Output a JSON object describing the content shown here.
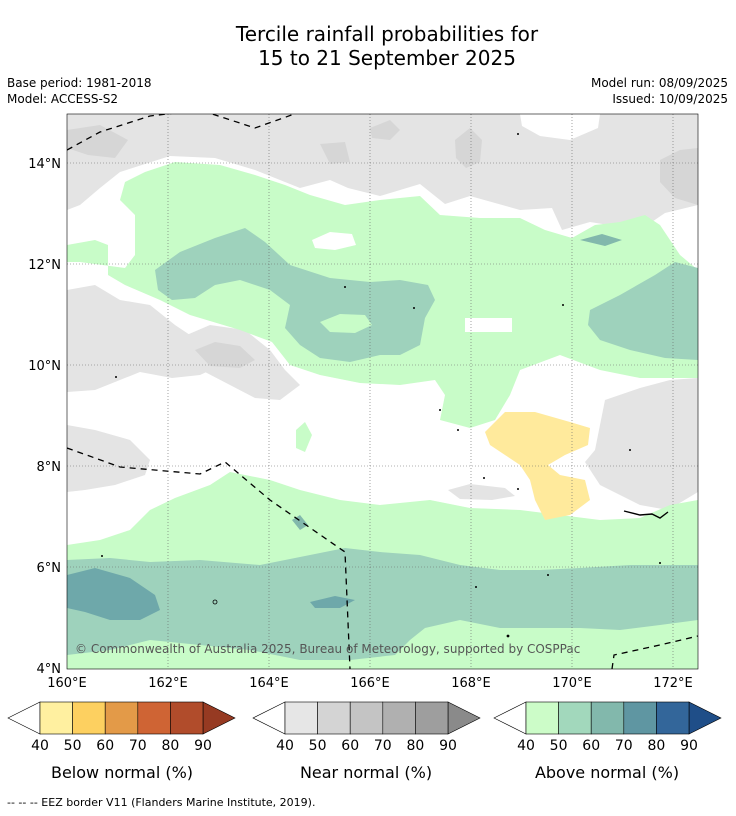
{
  "title_line1": "Tercile rainfall probabilities for",
  "title_line2": "15 to 21 September 2025",
  "base_period": "Base period: 1981-2018",
  "model": "Model: ACCESS-S2",
  "model_run": "Model run: 08/09/2025",
  "issued": "Issued: 10/09/2025",
  "copyright": "© Commonwealth of Australia 2025, Bureau of Meteorology, supported by COSPPac",
  "footnote": "--  --  -- EEZ border V11 (Flanders Marine Institute, 2019).",
  "map": {
    "lat_ticks": [
      "14°N",
      "12°N",
      "10°N",
      "8°N",
      "6°N",
      "4°N"
    ],
    "lon_ticks": [
      "160°E",
      "162°E",
      "164°E",
      "166°E",
      "168°E",
      "170°E",
      "172°E"
    ]
  },
  "colorbars": [
    {
      "title": "Below normal (%)",
      "labels": [
        "40",
        "50",
        "60",
        "70",
        "80",
        "90"
      ],
      "colors": [
        "#fff0a0",
        "#fdd060",
        "#e39a48",
        "#cf6434",
        "#b14c2b",
        "#963a22"
      ]
    },
    {
      "title": "Near normal (%)",
      "labels": [
        "40",
        "50",
        "60",
        "70",
        "80",
        "90"
      ],
      "colors": [
        "#e6e6e6",
        "#d4d4d4",
        "#c4c4c4",
        "#b0b0b0",
        "#9e9e9e",
        "#8a8a8a"
      ]
    },
    {
      "title": "Above normal (%)",
      "labels": [
        "40",
        "50",
        "60",
        "70",
        "80",
        "90"
      ],
      "colors": [
        "#ccfcc8",
        "#a2d8bc",
        "#82b8ac",
        "#5f96a2",
        "#33669a",
        "#1f4e88"
      ]
    }
  ],
  "colors": {
    "near_light": "#e4e4e4",
    "near_mid": "#d4d4d4",
    "above_light": "#c8fcc8",
    "above_mid": "#9ed2bc",
    "above_dark": "#6ea8aa",
    "below_light": "#ffea9c"
  }
}
